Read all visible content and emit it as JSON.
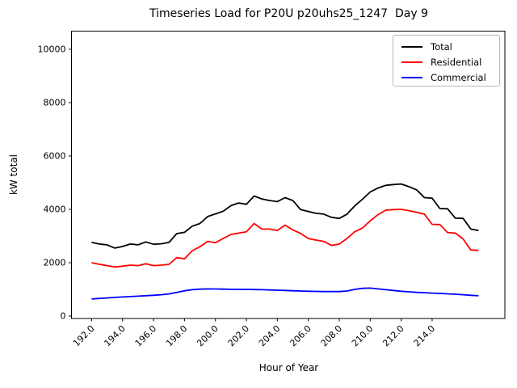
{
  "figure": {
    "title": "Timeseries Load for P20U p20uhs25_1247  Day 9"
  },
  "chart_data": {
    "type": "line",
    "title": "Timeseries Load for P20U p20uhs25_1247  Day 9",
    "xlabel": "Hour of Year",
    "ylabel": "kW total",
    "xlim": [
      190.7,
      218.7
    ],
    "ylim": [
      -90,
      10680
    ],
    "grid": false,
    "x_ticks": [
      192,
      194,
      196,
      198,
      200,
      202,
      204,
      206,
      208,
      210,
      212,
      214
    ],
    "x_tick_labels": [
      "192.0",
      "194.0",
      "196.0",
      "198.0",
      "200.0",
      "202.0",
      "204.0",
      "206.0",
      "208.0",
      "210.0",
      "212.0",
      "214.0"
    ],
    "x_tick_rotation_deg": 45,
    "y_ticks": [
      0,
      2000,
      4000,
      6000,
      8000,
      10000
    ],
    "y_tick_labels": [
      "0",
      "2000",
      "4000",
      "6000",
      "8000",
      "10000"
    ],
    "legend": {
      "position": "upper right",
      "entries": [
        {
          "label": "Total",
          "color": "#000000"
        },
        {
          "label": "Residential",
          "color": "#ff0000"
        },
        {
          "label": "Commercial",
          "color": "#0000ff"
        }
      ]
    },
    "x": [
      192,
      192.5,
      193,
      193.5,
      194,
      194.5,
      195,
      195.5,
      196,
      196.5,
      197,
      197.5,
      198,
      198.5,
      199,
      199.5,
      200,
      200.5,
      201,
      201.5,
      202,
      202.5,
      203,
      203.5,
      204,
      204.5,
      205,
      205.5,
      206,
      206.5,
      207,
      207.5,
      208,
      208.5,
      209,
      209.5,
      210,
      210.5,
      211,
      211.5,
      212,
      212.5,
      213,
      213.5,
      214,
      214.5,
      215,
      215.5,
      216,
      216.5,
      217
    ],
    "series": [
      {
        "name": "Total",
        "color": "#000000",
        "values": [
          2760,
          2700,
          2670,
          2550,
          2610,
          2700,
          2670,
          2780,
          2690,
          2710,
          2760,
          3090,
          3140,
          3370,
          3470,
          3730,
          3830,
          3930,
          4140,
          4240,
          4190,
          4500,
          4390,
          4330,
          4290,
          4440,
          4330,
          3990,
          3920,
          3850,
          3820,
          3700,
          3660,
          3820,
          4130,
          4380,
          4650,
          4800,
          4900,
          4930,
          4950,
          4850,
          4730,
          4440,
          4420,
          4030,
          4020,
          3670,
          3660,
          3260,
          3210
        ]
      },
      {
        "name": "Residential",
        "color": "#ff0000",
        "values": [
          2000,
          1940,
          1890,
          1840,
          1870,
          1910,
          1890,
          1960,
          1890,
          1910,
          1940,
          2190,
          2150,
          2450,
          2600,
          2800,
          2750,
          2910,
          3060,
          3110,
          3160,
          3470,
          3260,
          3260,
          3210,
          3410,
          3230,
          3100,
          2905,
          2850,
          2800,
          2650,
          2700,
          2910,
          3160,
          3300,
          3570,
          3800,
          3970,
          3990,
          4000,
          3950,
          3890,
          3820,
          3440,
          3430,
          3130,
          3110,
          2890,
          2480,
          2460
        ]
      },
      {
        "name": "Commercial",
        "color": "#0000ff",
        "values": [
          640,
          660,
          680,
          700,
          715,
          730,
          745,
          765,
          780,
          800,
          830,
          890,
          950,
          990,
          1010,
          1020,
          1015,
          1010,
          1005,
          1000,
          1000,
          995,
          990,
          980,
          970,
          960,
          950,
          940,
          930,
          925,
          920,
          918,
          920,
          940,
          1000,
          1040,
          1050,
          1020,
          990,
          960,
          930,
          910,
          890,
          875,
          860,
          850,
          835,
          820,
          800,
          780,
          760
        ]
      }
    ]
  }
}
